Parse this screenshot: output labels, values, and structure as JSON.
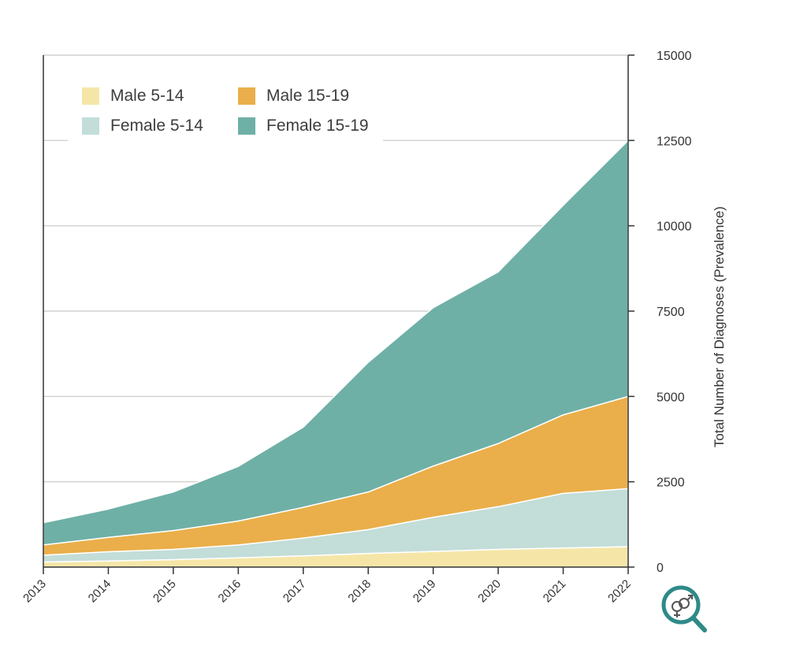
{
  "chart_data": {
    "type": "area",
    "stacked": true,
    "x": [
      "2013",
      "2014",
      "2015",
      "2016",
      "2017",
      "2018",
      "2019",
      "2020",
      "2021",
      "2022"
    ],
    "ylabel": "Total Number of Diagnoses (Prevalence)",
    "ylim": [
      0,
      15000
    ],
    "yticks": [
      "0",
      "2500",
      "5000",
      "7500",
      "10000",
      "12500",
      "15000"
    ],
    "y_axis_side": "right",
    "grid": "horizontal",
    "legend_position": "top-left",
    "series": [
      {
        "name": "Male 5-14",
        "color": "#f5e6a8",
        "values": [
          150,
          180,
          220,
          270,
          330,
          400,
          460,
          520,
          560,
          600
        ]
      },
      {
        "name": "Female 5-14",
        "color": "#c3ddd8",
        "values": [
          200,
          270,
          300,
          380,
          520,
          700,
          1000,
          1250,
          1600,
          1700
        ]
      },
      {
        "name": "Male 15-19",
        "color": "#eaaf4a",
        "values": [
          300,
          420,
          550,
          700,
          900,
          1100,
          1500,
          1850,
          2300,
          2700
        ]
      },
      {
        "name": "Female 15-19",
        "color": "#6fb0a6",
        "values": [
          650,
          830,
          1130,
          1600,
          2350,
          3800,
          4640,
          5030,
          6140,
          7500
        ]
      }
    ],
    "legend_order": [
      "Male 5-14",
      "Male 15-19",
      "Female 5-14",
      "Female 15-19"
    ]
  },
  "icons": {
    "corner_icon": "magnifier-gender-icon"
  },
  "colors": {
    "gridline": "#c8c8c8",
    "axis": "#333333",
    "icon": "#2e8a88"
  }
}
